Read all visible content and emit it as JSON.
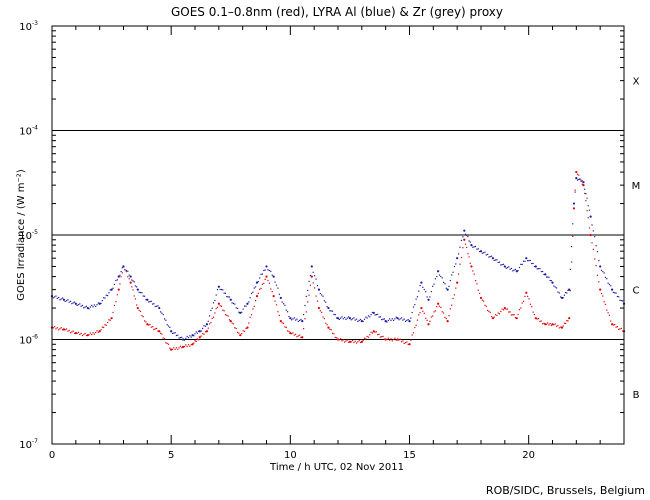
{
  "chart_data": {
    "type": "scatter",
    "title": "GOES 0.1–0.8nm (red), LYRA Al (blue) & Zr (grey) proxy",
    "xlabel": "Time / h UTC, 02 Nov 2011",
    "ylabel": "GOES Irradiance / (W m⁻²)",
    "yscale": "log",
    "xlim": [
      0,
      24
    ],
    "ylim": [
      1e-07,
      0.001
    ],
    "x_ticks": [
      0,
      5,
      10,
      15,
      20
    ],
    "x_tick_labels": [
      "0",
      "5",
      "10",
      "15",
      "20"
    ],
    "y_tick_mantissa": [
      "10",
      "10",
      "10",
      "10",
      "10"
    ],
    "y_tick_exponents": [
      "-7",
      "-6",
      "-5",
      "-4",
      "-3"
    ],
    "y_tick_values": [
      1e-07,
      1e-06,
      1e-05,
      0.0001,
      0.001
    ],
    "reference_lines": [
      1e-06,
      1e-05,
      0.0001
    ],
    "flare_classes": [
      {
        "label": "X",
        "value": 0.0003
      },
      {
        "label": "M",
        "value": 3e-05
      },
      {
        "label": "C",
        "value": 3e-06
      },
      {
        "label": "B",
        "value": 3e-07
      }
    ],
    "credit": "ROB/SIDC, Brussels, Belgium",
    "series": [
      {
        "color": "#e00000",
        "x": [
          0.0,
          0.5,
          1.0,
          1.5,
          2.0,
          2.5,
          2.8,
          3.0,
          3.3,
          3.6,
          4.0,
          4.5,
          5.0,
          5.5,
          5.9,
          6.2,
          6.5,
          7.0,
          7.5,
          7.9,
          8.2,
          8.6,
          9.0,
          9.3,
          9.6,
          10.0,
          10.5,
          10.9,
          11.2,
          11.6,
          12.0,
          12.5,
          13.0,
          13.5,
          14.0,
          14.5,
          15.0,
          15.5,
          15.8,
          16.2,
          16.6,
          17.0,
          17.3,
          17.6,
          18.0,
          18.5,
          19.0,
          19.5,
          19.9,
          20.3,
          20.7,
          21.0,
          21.4,
          21.7,
          21.9,
          22.0,
          22.3,
          22.6,
          23.0,
          23.5,
          24.0
        ],
        "y": [
          1.3e-06,
          1.25e-06,
          1.15e-06,
          1.1e-06,
          1.2e-06,
          1.6e-06,
          3e-06,
          5e-06,
          3.5e-06,
          2e-06,
          1.4e-06,
          1.2e-06,
          8e-07,
          8.5e-07,
          9e-07,
          1.05e-06,
          1.2e-06,
          2.2e-06,
          1.5e-06,
          1.1e-06,
          1.3e-06,
          2.6e-06,
          4e-06,
          2.6e-06,
          1.5e-06,
          1.15e-06,
          1.05e-06,
          4e-06,
          2e-06,
          1.3e-06,
          1e-06,
          9.5e-07,
          9.5e-07,
          1.2e-06,
          1e-06,
          1e-06,
          9e-07,
          2e-06,
          1.4e-06,
          2.2e-06,
          1.5e-06,
          3.5e-06,
          9e-06,
          5e-06,
          2.5e-06,
          1.6e-06,
          2e-06,
          1.6e-06,
          2.8e-06,
          1.6e-06,
          1.4e-06,
          1.4e-06,
          1.3e-06,
          1.6e-06,
          1.8e-05,
          4e-05,
          3e-05,
          1e-05,
          3e-06,
          1.4e-06,
          1.2e-06
        ]
      },
      {
        "color": "#1818a0",
        "x": [
          0.0,
          0.5,
          1.0,
          1.5,
          2.0,
          2.5,
          2.8,
          3.0,
          3.3,
          3.6,
          4.0,
          4.5,
          5.0,
          5.5,
          5.9,
          6.2,
          6.5,
          7.0,
          7.5,
          7.9,
          8.2,
          8.6,
          9.0,
          9.3,
          9.6,
          10.0,
          10.5,
          10.9,
          11.2,
          11.6,
          12.0,
          12.5,
          13.0,
          13.5,
          14.0,
          14.5,
          15.0,
          15.5,
          15.8,
          16.2,
          16.6,
          17.0,
          17.3,
          17.6,
          18.0,
          18.5,
          19.0,
          19.5,
          19.9,
          20.3,
          20.7,
          21.0,
          21.4,
          21.7,
          21.9,
          22.0,
          22.3,
          22.6,
          23.0,
          23.5,
          24.0
        ],
        "y": [
          2.6e-06,
          2.4e-06,
          2.2e-06,
          2e-06,
          2.2e-06,
          3e-06,
          4e-06,
          5e-06,
          4e-06,
          3e-06,
          2.4e-06,
          2e-06,
          1.2e-06,
          1e-06,
          1.1e-06,
          1.2e-06,
          1.4e-06,
          3.2e-06,
          2.4e-06,
          1.8e-06,
          2.2e-06,
          3.5e-06,
          5e-06,
          4e-06,
          2.5e-06,
          1.6e-06,
          1.5e-06,
          5e-06,
          3e-06,
          2e-06,
          1.6e-06,
          1.6e-06,
          1.5e-06,
          1.8e-06,
          1.5e-06,
          1.6e-06,
          1.5e-06,
          3.5e-06,
          2.4e-06,
          4.5e-06,
          3e-06,
          6e-06,
          1.1e-05,
          8e-06,
          7e-06,
          6e-06,
          5e-06,
          4.5e-06,
          6e-06,
          5e-06,
          4.2e-06,
          3.5e-06,
          2.5e-06,
          3e-06,
          2e-05,
          3.5e-05,
          3.2e-05,
          1.5e-05,
          5e-06,
          3e-06,
          2.2e-06
        ]
      }
    ]
  }
}
